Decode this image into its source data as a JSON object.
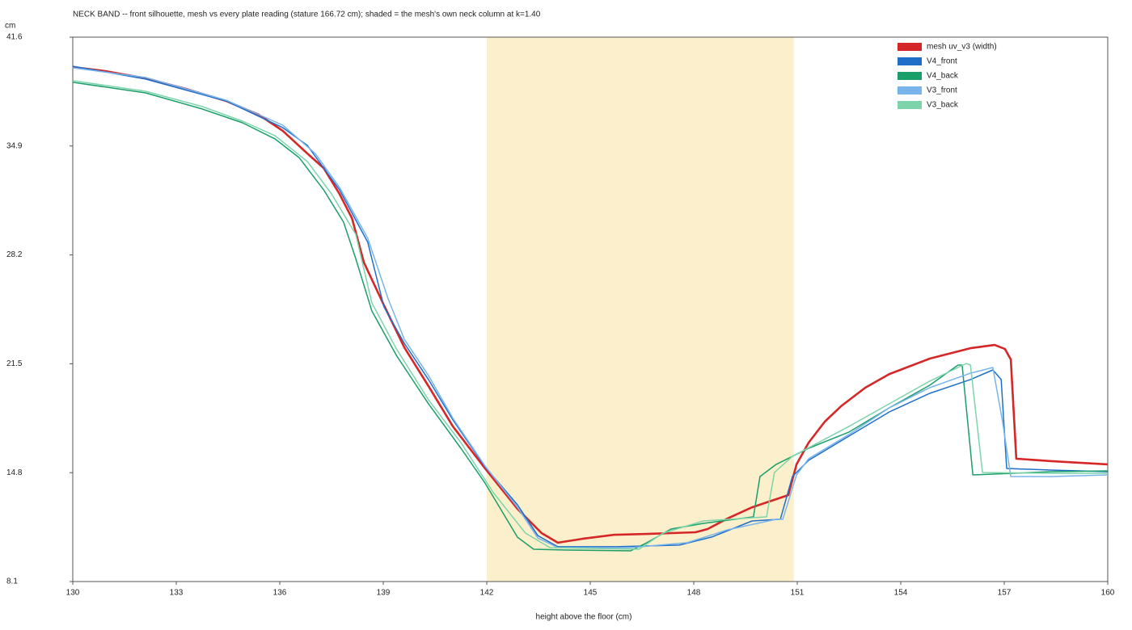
{
  "chart_data": {
    "type": "line",
    "title": "NECK BAND -- front silhouette, mesh vs every plate reading (stature 166.72 cm); shaded = the mesh's own neck column at k=1.40",
    "x_label": "height above the floor (cm)",
    "y_label": "cm",
    "xlim": [
      130,
      160
    ],
    "ylim": [
      8.1,
      41.6
    ],
    "xticks": [
      130,
      133,
      136,
      139,
      142,
      145,
      148,
      151,
      154,
      157,
      160
    ],
    "yticks": [
      8.1,
      14.8,
      21.5,
      28.2,
      34.9,
      41.6
    ],
    "shaded_range": [
      142,
      150.9
    ],
    "shaded_color": "#fcefcc",
    "legend": "upper right",
    "series": [
      {
        "name": "mesh uv_v3 (width)",
        "color": "#d62728",
        "width": 2.6,
        "x": [
          130,
          130.94,
          132.11,
          133.28,
          134.45,
          135.39,
          136.09,
          136.8,
          137.27,
          137.73,
          138.09,
          138.44,
          139.02,
          139.61,
          140.31,
          141.02,
          141.95,
          142.89,
          143.59,
          144.06,
          144.77,
          145.7,
          146.64,
          148.05,
          148.4,
          148.98,
          149.69,
          150.74,
          150.98,
          151.33,
          151.8,
          152.27,
          152.97,
          153.67,
          154.84,
          156.02,
          156.72,
          157.02,
          157.19,
          157.35,
          158.36,
          160
        ],
        "values": [
          39.76,
          39.51,
          39.07,
          38.42,
          37.67,
          36.83,
          35.83,
          34.44,
          33.55,
          31.96,
          30.47,
          27.73,
          25.1,
          22.51,
          20.13,
          17.64,
          15.06,
          12.57,
          11.08,
          10.49,
          10.73,
          10.98,
          11.03,
          11.13,
          11.33,
          11.98,
          12.67,
          13.42,
          15.31,
          16.65,
          17.94,
          18.89,
          20.03,
          20.87,
          21.82,
          22.46,
          22.66,
          22.41,
          21.77,
          15.66,
          15.51,
          15.31
        ]
      },
      {
        "name": "V4_front",
        "color": "#1f6fc8",
        "width": 1.5,
        "x": [
          130,
          132.11,
          134.45,
          136.09,
          136.8,
          137.73,
          138.55,
          139.02,
          139.61,
          140.31,
          141.02,
          141.95,
          142.89,
          143.48,
          144.06,
          145.7,
          147.58,
          148.52,
          149.69,
          150.51,
          150.86,
          151.33,
          152.5,
          153.67,
          154.84,
          156.02,
          156.67,
          156.91,
          157.07,
          158.36,
          160
        ],
        "values": [
          39.81,
          39.02,
          37.67,
          36.03,
          34.94,
          32.21,
          28.98,
          25.0,
          22.76,
          20.53,
          18.04,
          15.16,
          12.82,
          10.93,
          10.24,
          10.24,
          10.34,
          10.84,
          11.83,
          11.93,
          14.56,
          15.56,
          17.05,
          18.54,
          19.68,
          20.53,
          21.12,
          20.53,
          15.06,
          14.96,
          14.86
        ]
      },
      {
        "name": "V4_back",
        "color": "#1a9e6a",
        "width": 1.5,
        "x": [
          130,
          132.11,
          133.75,
          134.92,
          135.86,
          136.56,
          137.27,
          137.85,
          138.2,
          138.67,
          139.38,
          140.31,
          141.25,
          141.95,
          142.89,
          143.36,
          144.3,
          146.17,
          146.64,
          147.34,
          148.28,
          149.73,
          149.92,
          150.39,
          151.33,
          152.5,
          153.67,
          154.84,
          155.66,
          155.78,
          156.09,
          158.36,
          160
        ],
        "values": [
          38.82,
          38.17,
          37.18,
          36.33,
          35.34,
          34.19,
          32.21,
          30.22,
          27.98,
          24.75,
          22.02,
          19.04,
          16.3,
          14.16,
          10.83,
          10.09,
          10.04,
          9.99,
          10.49,
          11.33,
          11.68,
          12.08,
          14.56,
          15.31,
          16.3,
          17.3,
          18.79,
          20.18,
          21.42,
          21.42,
          14.66,
          14.86,
          14.91
        ]
      },
      {
        "name": "V3_front",
        "color": "#78b4ec",
        "width": 1.5,
        "x": [
          130,
          132.11,
          134.45,
          136.09,
          137.03,
          137.73,
          138.55,
          139.14,
          139.61,
          140.31,
          141.02,
          141.95,
          142.89,
          143.48,
          144.06,
          146.17,
          147.81,
          148.98,
          150.39,
          150.58,
          150.98,
          151.33,
          152.5,
          153.67,
          154.84,
          156.02,
          156.67,
          156.95,
          157.19,
          158.36,
          160
        ],
        "values": [
          39.71,
          39.12,
          37.72,
          36.18,
          34.44,
          32.36,
          29.23,
          25.5,
          23.01,
          20.78,
          18.14,
          15.21,
          12.67,
          10.78,
          10.19,
          10.19,
          10.49,
          11.28,
          11.93,
          11.93,
          14.66,
          15.66,
          17.15,
          18.79,
          20.03,
          20.92,
          21.27,
          17.94,
          14.56,
          14.56,
          14.66
        ]
      },
      {
        "name": "V3_back",
        "color": "#7dd4aa",
        "width": 1.5,
        "x": [
          130,
          132.11,
          133.75,
          134.92,
          135.86,
          136.8,
          137.5,
          138.2,
          138.67,
          139.38,
          140.31,
          141.25,
          142.19,
          143.12,
          143.83,
          146.41,
          147.11,
          148.28,
          150.11,
          150.34,
          150.86,
          152.5,
          153.67,
          154.84,
          155.9,
          156.02,
          156.37,
          158.36,
          160
        ],
        "values": [
          38.92,
          38.27,
          37.33,
          36.43,
          35.54,
          33.95,
          31.96,
          29.47,
          25.25,
          22.42,
          19.29,
          16.65,
          13.57,
          11.08,
          10.19,
          10.09,
          11.08,
          11.83,
          12.08,
          14.81,
          15.81,
          17.65,
          19.04,
          20.43,
          21.52,
          21.42,
          14.81,
          14.76,
          14.76
        ]
      }
    ]
  }
}
